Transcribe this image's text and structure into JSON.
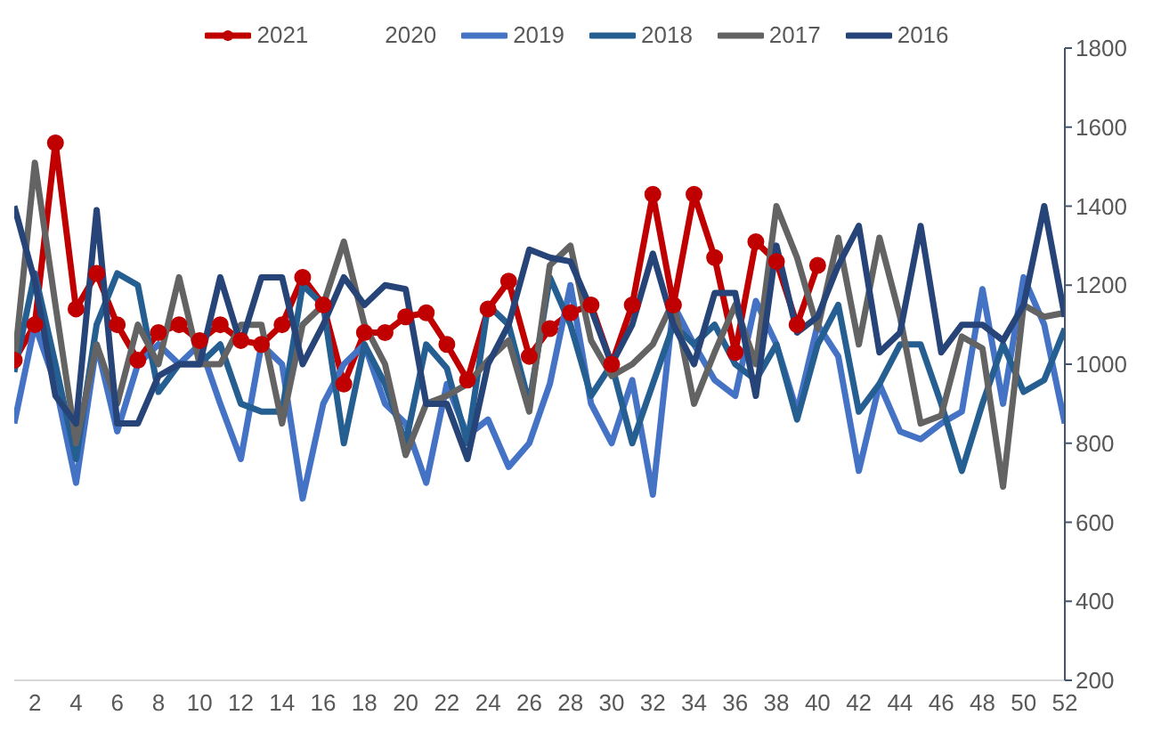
{
  "chart_data": {
    "type": "line",
    "x": [
      1,
      2,
      3,
      4,
      5,
      6,
      7,
      8,
      9,
      10,
      11,
      12,
      13,
      14,
      15,
      16,
      17,
      18,
      19,
      20,
      21,
      22,
      23,
      24,
      25,
      26,
      27,
      28,
      29,
      30,
      31,
      32,
      33,
      34,
      35,
      36,
      37,
      38,
      39,
      40,
      41,
      42,
      43,
      44,
      45,
      46,
      47,
      48,
      49,
      50,
      51,
      52
    ],
    "xlim": [
      1,
      52
    ],
    "xticks": [
      2,
      4,
      6,
      8,
      10,
      12,
      14,
      16,
      18,
      20,
      22,
      24,
      26,
      28,
      30,
      32,
      34,
      36,
      38,
      40,
      42,
      44,
      46,
      48,
      50,
      52
    ],
    "ylim": [
      200,
      1800
    ],
    "yticks": [
      200,
      400,
      600,
      800,
      1000,
      1200,
      1400,
      1600,
      1800
    ],
    "grid": false,
    "legend": "top",
    "marker": "none",
    "line_style": "solid",
    "series": [
      {
        "name": "2021",
        "color": "#c00000",
        "marker": "circle",
        "values": [
          1010,
          1100,
          1560,
          1140,
          1230,
          1100,
          1010,
          1080,
          1100,
          1060,
          1100,
          1060,
          1050,
          1100,
          1220,
          1150,
          950,
          1080,
          1080,
          1120,
          1130,
          1050,
          960,
          1140,
          1210,
          1020,
          1090,
          1130,
          1150,
          1000,
          1150,
          1430,
          1150,
          1430,
          1270,
          1030,
          1310,
          1260,
          1100,
          1250,
          null,
          null,
          null,
          null,
          null,
          null,
          null,
          null,
          null,
          null,
          null,
          null
        ]
      },
      {
        "name": "2020",
        "values": [
          null,
          null,
          null,
          null,
          null,
          null,
          null,
          null,
          null,
          null,
          null,
          null,
          null,
          null,
          null,
          null,
          null,
          null,
          null,
          null,
          null,
          null,
          null,
          null,
          null,
          null,
          null,
          null,
          null,
          null,
          null,
          null,
          null,
          null,
          null,
          null,
          null,
          null,
          null,
          null,
          null,
          null,
          null,
          null,
          null,
          null,
          null,
          null,
          null,
          null,
          null,
          null
        ]
      },
      {
        "name": "2019",
        "color": "#4472c4",
        "values": [
          850,
          1100,
          950,
          700,
          1050,
          830,
          1000,
          1050,
          1000,
          1050,
          900,
          760,
          1050,
          1000,
          660,
          900,
          1000,
          1050,
          900,
          850,
          700,
          950,
          820,
          860,
          740,
          800,
          950,
          1200,
          900,
          800,
          960,
          670,
          1150,
          1050,
          960,
          920,
          1160,
          1050,
          880,
          1100,
          1020,
          730,
          950,
          830,
          810,
          850,
          880,
          1190,
          900,
          1220,
          1100,
          850
        ]
      },
      {
        "name": "2018",
        "color": "#255e91",
        "values": [
          980,
          1230,
          1000,
          760,
          1100,
          1230,
          1200,
          930,
          1000,
          1000,
          1050,
          900,
          880,
          880,
          1200,
          1150,
          800,
          1050,
          950,
          800,
          1050,
          990,
          800,
          1150,
          1100,
          900,
          1220,
          1100,
          920,
          1000,
          800,
          950,
          1100,
          1050,
          1100,
          1000,
          960,
          1050,
          860,
          1050,
          1150,
          880,
          950,
          1050,
          1050,
          900,
          730,
          900,
          1050,
          930,
          960,
          1090
        ]
      },
      {
        "name": "2017",
        "color": "#636363",
        "values": [
          1000,
          1510,
          1150,
          800,
          1050,
          900,
          1100,
          1000,
          1220,
          1000,
          1000,
          1100,
          1100,
          850,
          1100,
          1150,
          1310,
          1100,
          1000,
          770,
          900,
          920,
          950,
          1010,
          1060,
          880,
          1250,
          1300,
          1060,
          970,
          1000,
          1050,
          1160,
          900,
          1030,
          1150,
          1000,
          1400,
          1270,
          1090,
          1320,
          1050,
          1320,
          1120,
          850,
          870,
          1070,
          1040,
          690,
          1150,
          1120,
          1130
        ]
      },
      {
        "name": "2016",
        "color": "#264478",
        "values": [
          1400,
          1210,
          920,
          850,
          1390,
          850,
          850,
          970,
          1000,
          1000,
          1220,
          1050,
          1220,
          1220,
          1000,
          1100,
          1220,
          1150,
          1200,
          1190,
          900,
          900,
          760,
          1000,
          1100,
          1290,
          1270,
          1260,
          1140,
          1000,
          1100,
          1280,
          1100,
          1000,
          1180,
          1180,
          920,
          1300,
          1080,
          1120,
          1250,
          1350,
          1030,
          1080,
          1350,
          1030,
          1100,
          1100,
          1060,
          1150,
          1400,
          1120
        ]
      }
    ]
  }
}
